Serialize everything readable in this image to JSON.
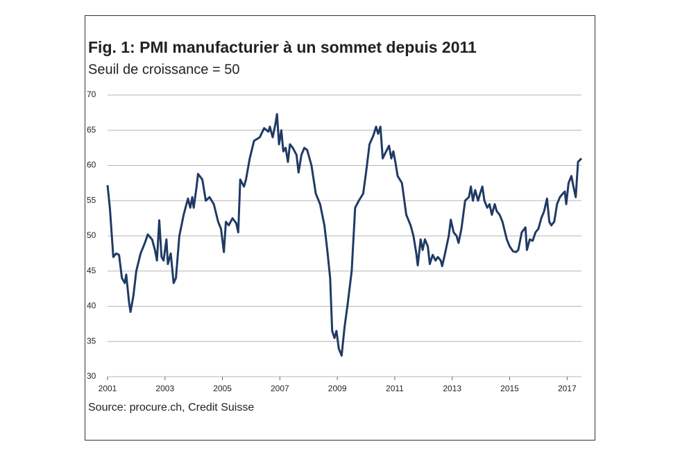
{
  "chart_data": {
    "type": "line",
    "title": "Fig. 1: PMI manufacturier à un sommet depuis 2011",
    "subtitle": "Seuil de croissance = 50",
    "source": "Source: procure.ch, Credit Suisse",
    "xlim": [
      2001,
      2017.5
    ],
    "xticks": [
      2001,
      2003,
      2005,
      2007,
      2009,
      2011,
      2013,
      2015,
      2017
    ],
    "ylim": [
      30,
      70
    ],
    "yticks": [
      30,
      35,
      40,
      45,
      50,
      55,
      60,
      65,
      70
    ],
    "grid": true,
    "series": [
      {
        "name": "PMI",
        "color": "#1f3a64",
        "x": [
          2001.0,
          2001.08,
          2001.2,
          2001.3,
          2001.4,
          2001.5,
          2001.6,
          2001.65,
          2001.75,
          2001.8,
          2001.9,
          2002.0,
          2002.15,
          2002.3,
          2002.4,
          2002.55,
          2002.65,
          2002.72,
          2002.8,
          2002.88,
          2002.95,
          2003.05,
          2003.1,
          2003.2,
          2003.3,
          2003.38,
          2003.5,
          2003.65,
          2003.8,
          2003.88,
          2003.95,
          2004.0,
          2004.1,
          2004.15,
          2004.3,
          2004.42,
          2004.55,
          2004.7,
          2004.85,
          2004.95,
          2005.05,
          2005.12,
          2005.22,
          2005.35,
          2005.48,
          2005.55,
          2005.62,
          2005.75,
          2005.82,
          2005.95,
          2006.1,
          2006.3,
          2006.45,
          2006.6,
          2006.65,
          2006.75,
          2006.85,
          2006.9,
          2006.97,
          2007.05,
          2007.12,
          2007.2,
          2007.28,
          2007.35,
          2007.45,
          2007.58,
          2007.65,
          2007.75,
          2007.85,
          2007.95,
          2008.1,
          2008.25,
          2008.4,
          2008.55,
          2008.65,
          2008.75,
          2008.82,
          2008.9,
          2008.97,
          2009.05,
          2009.15,
          2009.25,
          2009.35,
          2009.5,
          2009.62,
          2009.75,
          2009.9,
          2010.0,
          2010.12,
          2010.25,
          2010.35,
          2010.42,
          2010.5,
          2010.58,
          2010.7,
          2010.8,
          2010.88,
          2010.95,
          2011.02,
          2011.1,
          2011.25,
          2011.4,
          2011.55,
          2011.65,
          2011.75,
          2011.8,
          2011.9,
          2011.97,
          2012.05,
          2012.15,
          2012.22,
          2012.32,
          2012.42,
          2012.5,
          2012.6,
          2012.65,
          2012.75,
          2012.88,
          2012.95,
          2013.05,
          2013.15,
          2013.22,
          2013.32,
          2013.45,
          2013.58,
          2013.65,
          2013.72,
          2013.8,
          2013.9,
          2013.97,
          2014.05,
          2014.12,
          2014.22,
          2014.3,
          2014.38,
          2014.48,
          2014.55,
          2014.65,
          2014.75,
          2014.9,
          2015.0,
          2015.12,
          2015.22,
          2015.3,
          2015.42,
          2015.55,
          2015.6,
          2015.7,
          2015.8,
          2015.9,
          2016.0,
          2016.1,
          2016.2,
          2016.3,
          2016.38,
          2016.45,
          2016.55,
          2016.65,
          2016.75,
          2016.85,
          2016.92,
          2016.97,
          2017.05,
          2017.15,
          2017.22,
          2017.3,
          2017.38,
          2017.5
        ],
        "values": [
          57.2,
          54,
          47,
          47.5,
          47.3,
          44,
          43.3,
          44.5,
          40.5,
          39.2,
          41.5,
          45,
          47.5,
          49,
          50.2,
          49.5,
          48,
          46.5,
          52.2,
          47,
          46.5,
          49.5,
          46,
          47.5,
          43.3,
          44,
          50,
          53,
          55.3,
          54,
          55.5,
          54,
          57,
          58.8,
          58,
          55,
          55.5,
          54.5,
          52,
          51,
          47.7,
          52,
          51.5,
          52.5,
          51.8,
          50.5,
          58,
          57,
          58,
          61,
          63.5,
          64,
          65.3,
          64.8,
          65.5,
          64,
          66,
          67.3,
          63,
          65,
          62,
          62.5,
          60.5,
          63,
          62.5,
          61.5,
          59,
          61.5,
          62.5,
          62.2,
          60,
          56,
          54.5,
          51.5,
          48,
          44,
          36.5,
          35.5,
          36.5,
          34,
          33,
          37,
          40,
          45,
          54,
          55,
          56,
          59,
          63,
          64.2,
          65.5,
          64.5,
          65.5,
          61,
          62,
          62.8,
          61,
          62,
          60.5,
          58.5,
          57.5,
          53,
          51.5,
          50,
          47.5,
          45.8,
          49.5,
          48,
          49.5,
          48.5,
          46,
          47.3,
          46.5,
          47,
          46.5,
          45.7,
          47.5,
          50,
          52.3,
          50.5,
          50,
          49,
          51,
          55,
          55.5,
          57,
          55,
          56.5,
          55,
          56,
          57,
          55,
          54,
          54.5,
          53,
          54.5,
          53.5,
          53,
          52,
          49.5,
          48.5,
          47.8,
          47.7,
          48,
          50.5,
          51.2,
          48,
          49.5,
          49.3,
          50.5,
          51,
          52.5,
          53.5,
          55.3,
          52,
          51.5,
          52,
          54.5,
          55.5,
          56,
          56.3,
          54.5,
          57.5,
          58.5,
          57,
          55.5,
          60.5,
          61
        ]
      }
    ]
  }
}
